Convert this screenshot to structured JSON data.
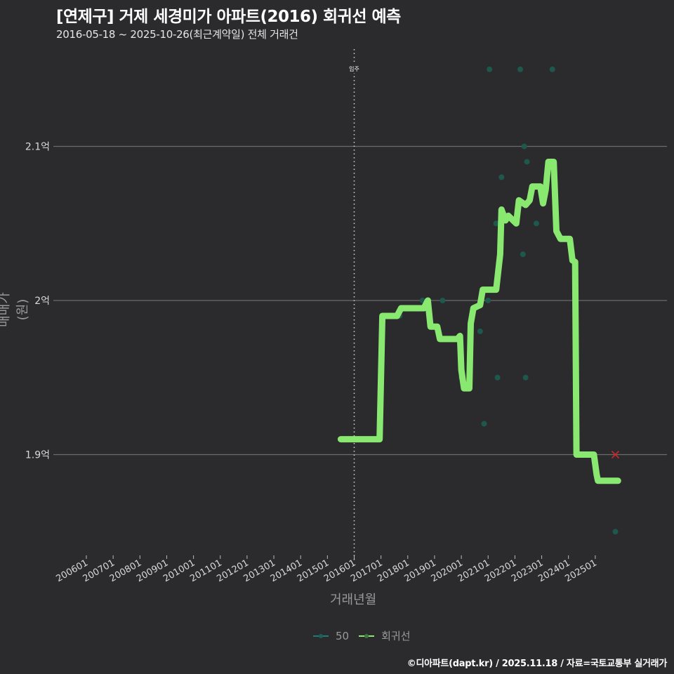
{
  "header": {
    "title": "[연제구] 거제 세경미가 아파트(2016) 회귀선 예측",
    "subtitle": "2016-05-18 ~ 2025-10-26(최근계약일) 전체 거래건"
  },
  "axes": {
    "ylabel": "매매가(원)",
    "xlabel": "거래년월"
  },
  "legend": [
    {
      "label": "50",
      "color": "#1f7a7a"
    },
    {
      "label": "회귀선",
      "color": "#88e870"
    }
  ],
  "credit": "©디아파트(dapt.kr) / 2025.11.18 / 자료=국토교통부 실거래가",
  "colors": {
    "background": "#2b2a2c",
    "grid": "#6b6b6b",
    "regression": "#88e870",
    "scatter": "#1e5a4e",
    "prediction": "#c0282d",
    "vline": "#cfcfcf"
  },
  "chart_data": {
    "type": "line",
    "title": "[연제구] 거제 세경미가 아파트(2016) 회귀선 예측",
    "subtitle": "2016-05-18 ~ 2025-10-26(최근계약일) 전체 거래건",
    "xlabel": "거래년월",
    "ylabel": "매매가(원)",
    "x_ticks": [
      "200601",
      "200701",
      "200801",
      "200901",
      "201001",
      "201101",
      "201201",
      "201301",
      "201401",
      "201501",
      "201601",
      "201701",
      "201801",
      "201901",
      "202001",
      "202101",
      "202201",
      "202301",
      "202401",
      "202501"
    ],
    "y_ticks": [
      {
        "value": 2.1,
        "label": "2.1억"
      },
      {
        "value": 2.0,
        "label": "2억"
      },
      {
        "value": 1.9,
        "label": "1.9억"
      }
    ],
    "ylim": [
      1.83,
      2.17
    ],
    "xlim": [
      2005.55,
      2026.0
    ],
    "grid": "horizontal",
    "legend_position": "bottom",
    "annotation": {
      "label": "입주",
      "x": 2016.0
    },
    "series": [
      {
        "name": "회귀선",
        "type": "line",
        "points": [
          [
            2015.5,
            1.91
          ],
          [
            2016.5,
            1.91
          ],
          [
            2016.95,
            1.91
          ],
          [
            2017.05,
            1.99
          ],
          [
            2017.6,
            1.99
          ],
          [
            2017.75,
            1.995
          ],
          [
            2018.6,
            1.995
          ],
          [
            2018.75,
            2.0
          ],
          [
            2018.85,
            1.983
          ],
          [
            2019.1,
            1.983
          ],
          [
            2019.2,
            1.975
          ],
          [
            2019.85,
            1.975
          ],
          [
            2019.95,
            1.977
          ],
          [
            2020.0,
            1.955
          ],
          [
            2020.1,
            1.943
          ],
          [
            2020.3,
            1.943
          ],
          [
            2020.35,
            1.985
          ],
          [
            2020.45,
            1.995
          ],
          [
            2020.7,
            1.997
          ],
          [
            2020.8,
            2.007
          ],
          [
            2021.3,
            2.007
          ],
          [
            2021.45,
            2.03
          ],
          [
            2021.5,
            2.059
          ],
          [
            2021.65,
            2.052
          ],
          [
            2021.75,
            2.055
          ],
          [
            2022.05,
            2.05
          ],
          [
            2022.15,
            2.065
          ],
          [
            2022.4,
            2.062
          ],
          [
            2022.55,
            2.065
          ],
          [
            2022.65,
            2.074
          ],
          [
            2022.95,
            2.074
          ],
          [
            2023.05,
            2.063
          ],
          [
            2023.15,
            2.072
          ],
          [
            2023.25,
            2.09
          ],
          [
            2023.45,
            2.09
          ],
          [
            2023.55,
            2.045
          ],
          [
            2023.7,
            2.04
          ],
          [
            2024.05,
            2.04
          ],
          [
            2024.15,
            2.026
          ],
          [
            2024.25,
            2.025
          ],
          [
            2024.3,
            1.9
          ],
          [
            2024.95,
            1.9
          ],
          [
            2025.05,
            1.887
          ],
          [
            2025.1,
            1.883
          ],
          [
            2025.85,
            1.883
          ]
        ]
      },
      {
        "name": "50",
        "type": "scatter",
        "points": [
          [
            2017.7,
            1.99
          ],
          [
            2018.55,
            2.0
          ],
          [
            2019.3,
            2.0
          ],
          [
            2020.0,
            1.95
          ],
          [
            2020.7,
            1.98
          ],
          [
            2020.85,
            1.92
          ],
          [
            2021.0,
            2.0
          ],
          [
            2021.05,
            2.15
          ],
          [
            2021.3,
            2.05
          ],
          [
            2021.35,
            1.95
          ],
          [
            2021.5,
            2.08
          ],
          [
            2022.2,
            2.15
          ],
          [
            2022.3,
            2.03
          ],
          [
            2022.35,
            2.1
          ],
          [
            2022.4,
            1.95
          ],
          [
            2022.45,
            2.09
          ],
          [
            2022.8,
            2.05
          ],
          [
            2023.4,
            2.15
          ],
          [
            2025.75,
            1.85
          ]
        ]
      },
      {
        "name": "예측",
        "type": "marker-x",
        "points": [
          [
            2025.75,
            1.9
          ]
        ]
      }
    ]
  }
}
